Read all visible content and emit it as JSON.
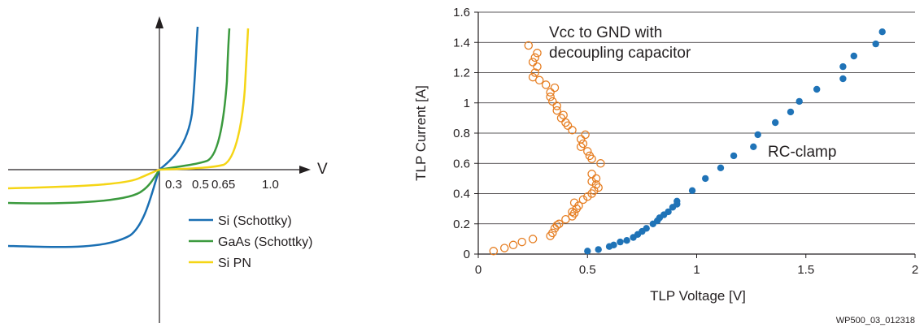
{
  "figure_id": "WP500_03_012318",
  "chart_data": [
    {
      "type": "line",
      "title": "",
      "xlabel": "V",
      "ylabel": "",
      "x_ticks": [
        "0.3",
        "0.5",
        "0.65",
        "1.0"
      ],
      "grid": false,
      "legend_position": "bottom-right",
      "series": [
        {
          "name": "Si (Schottky)",
          "color": "#1a6fb3",
          "threshold_v": 0.3
        },
        {
          "name": "GaAs (Schottky)",
          "color": "#3b9a3e",
          "threshold_v": 0.5
        },
        {
          "name": "Si PN",
          "color": "#f5d515",
          "threshold_v": 0.65
        }
      ]
    },
    {
      "type": "scatter",
      "title": "",
      "xlabel": "TLP Voltage [V]",
      "ylabel": "TLP Current [A]",
      "xlim": [
        0,
        2
      ],
      "ylim": [
        0,
        1.6
      ],
      "x_ticks": [
        "0",
        "0.5",
        "1",
        "1.5",
        "2"
      ],
      "y_ticks": [
        "0",
        "0.2",
        "0.4",
        "0.6",
        "0.8",
        "1",
        "1.2",
        "1.4",
        "1.6"
      ],
      "grid": true,
      "series": [
        {
          "name": "Vcc to GND with decoupling capacitor",
          "color": "#e67e22",
          "marker": "open-circle",
          "points": [
            [
              0.07,
              0.02
            ],
            [
              0.12,
              0.04
            ],
            [
              0.16,
              0.06
            ],
            [
              0.2,
              0.08
            ],
            [
              0.25,
              0.1
            ],
            [
              0.33,
              0.12
            ],
            [
              0.34,
              0.14
            ],
            [
              0.35,
              0.17
            ],
            [
              0.36,
              0.19
            ],
            [
              0.37,
              0.2
            ],
            [
              0.4,
              0.23
            ],
            [
              0.43,
              0.25
            ],
            [
              0.44,
              0.27
            ],
            [
              0.43,
              0.28
            ],
            [
              0.45,
              0.3
            ],
            [
              0.46,
              0.32
            ],
            [
              0.44,
              0.34
            ],
            [
              0.48,
              0.36
            ],
            [
              0.5,
              0.38
            ],
            [
              0.52,
              0.4
            ],
            [
              0.53,
              0.42
            ],
            [
              0.55,
              0.44
            ],
            [
              0.54,
              0.46
            ],
            [
              0.52,
              0.48
            ],
            [
              0.54,
              0.5
            ],
            [
              0.52,
              0.53
            ],
            [
              0.56,
              0.6
            ],
            [
              0.52,
              0.63
            ],
            [
              0.51,
              0.65
            ],
            [
              0.5,
              0.68
            ],
            [
              0.47,
              0.71
            ],
            [
              0.48,
              0.73
            ],
            [
              0.47,
              0.76
            ],
            [
              0.49,
              0.79
            ],
            [
              0.43,
              0.82
            ],
            [
              0.41,
              0.85
            ],
            [
              0.4,
              0.87
            ],
            [
              0.38,
              0.9
            ],
            [
              0.39,
              0.92
            ],
            [
              0.36,
              0.95
            ],
            [
              0.36,
              0.98
            ],
            [
              0.34,
              1.01
            ],
            [
              0.33,
              1.04
            ],
            [
              0.33,
              1.07
            ],
            [
              0.35,
              1.1
            ],
            [
              0.31,
              1.12
            ],
            [
              0.28,
              1.15
            ],
            [
              0.25,
              1.17
            ],
            [
              0.26,
              1.2
            ],
            [
              0.27,
              1.24
            ],
            [
              0.25,
              1.27
            ],
            [
              0.26,
              1.3
            ],
            [
              0.27,
              1.33
            ],
            [
              0.23,
              1.38
            ]
          ]
        },
        {
          "name": "RC-clamp",
          "color": "#1f73b7",
          "marker": "filled-circle",
          "points": [
            [
              0.5,
              0.02
            ],
            [
              0.55,
              0.03
            ],
            [
              0.6,
              0.05
            ],
            [
              0.62,
              0.06
            ],
            [
              0.65,
              0.08
            ],
            [
              0.68,
              0.09
            ],
            [
              0.71,
              0.11
            ],
            [
              0.73,
              0.13
            ],
            [
              0.75,
              0.15
            ],
            [
              0.77,
              0.17
            ],
            [
              0.8,
              0.2
            ],
            [
              0.82,
              0.22
            ],
            [
              0.83,
              0.24
            ],
            [
              0.85,
              0.26
            ],
            [
              0.87,
              0.28
            ],
            [
              0.89,
              0.31
            ],
            [
              0.91,
              0.33
            ],
            [
              0.91,
              0.35
            ],
            [
              0.98,
              0.42
            ],
            [
              1.04,
              0.5
            ],
            [
              1.11,
              0.57
            ],
            [
              1.17,
              0.65
            ],
            [
              1.26,
              0.71
            ],
            [
              1.28,
              0.79
            ],
            [
              1.36,
              0.87
            ],
            [
              1.43,
              0.94
            ],
            [
              1.47,
              1.01
            ],
            [
              1.55,
              1.09
            ],
            [
              1.67,
              1.16
            ],
            [
              1.67,
              1.24
            ],
            [
              1.72,
              1.31
            ],
            [
              1.82,
              1.39
            ],
            [
              1.85,
              1.47
            ]
          ]
        }
      ],
      "annotations": [
        {
          "text_lines": [
            "Vcc to GND with",
            "decoupling capacitor"
          ],
          "for_series": "Vcc to GND with decoupling capacitor"
        },
        {
          "text_lines": [
            "RC-clamp"
          ],
          "for_series": "RC-clamp"
        }
      ]
    }
  ]
}
